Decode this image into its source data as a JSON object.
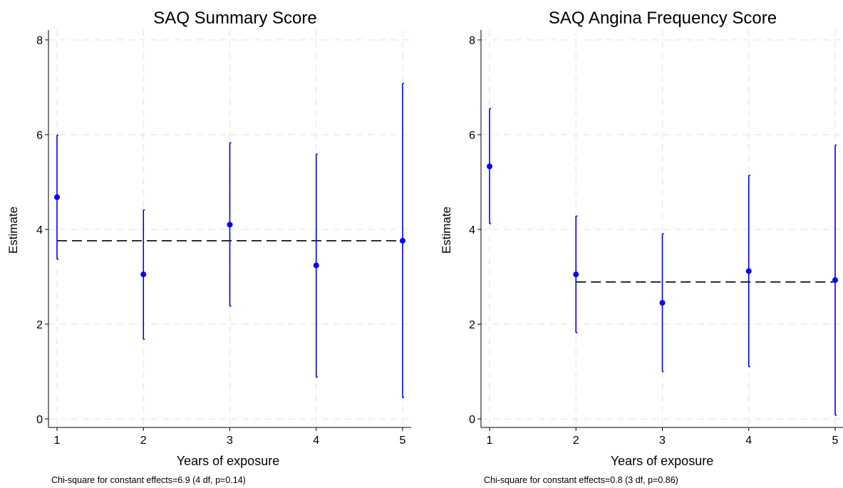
{
  "colors": {
    "marker": "#0000ff",
    "errorbar": "#0000ff",
    "reference_line": "#000000",
    "grid": "#e6e6e6"
  },
  "chart_data": [
    {
      "type": "scatter",
      "title": "SAQ Summary Score",
      "xlabel": "Years of exposure",
      "ylabel": "Estimate",
      "note": "Chi-square for constant effects=6.9 (4 df, p=0.14)",
      "x": [
        1,
        2,
        3,
        4,
        5
      ],
      "xticks": [
        "1",
        "2",
        "3",
        "4",
        "5"
      ],
      "yticks": [
        "0",
        "2",
        "4",
        "6",
        "8"
      ],
      "xlim": [
        1,
        5
      ],
      "ylim": [
        0,
        8
      ],
      "grid": true,
      "series": [
        {
          "values": [
            4.68,
            3.05,
            4.1,
            3.24,
            3.76
          ],
          "ci_lower": [
            3.37,
            1.68,
            2.38,
            0.88,
            0.45
          ],
          "ci_upper": [
            5.99,
            4.41,
            5.83,
            5.59,
            7.08
          ]
        }
      ],
      "reference_line": {
        "y": 3.76,
        "x_start": 1,
        "x_end": 5,
        "style": "dashed"
      }
    },
    {
      "type": "scatter",
      "title": "SAQ Angina Frequency Score",
      "xlabel": "Years of exposure",
      "ylabel": "Estimate",
      "note": "Chi-square for constant effects=0.8 (3 df, p=0.86)",
      "x": [
        1,
        2,
        3,
        4,
        5
      ],
      "xticks": [
        "1",
        "2",
        "3",
        "4",
        "5"
      ],
      "yticks": [
        "0",
        "2",
        "4",
        "6",
        "8"
      ],
      "xlim": [
        1,
        5
      ],
      "ylim": [
        0,
        8
      ],
      "grid": true,
      "series": [
        {
          "values": [
            5.33,
            3.05,
            2.45,
            3.12,
            2.93
          ],
          "ci_lower": [
            4.12,
            1.82,
            1.0,
            1.1,
            0.08
          ],
          "ci_upper": [
            6.55,
            4.28,
            3.91,
            5.14,
            5.78
          ]
        }
      ],
      "reference_line": {
        "y": 2.89,
        "x_start": 2,
        "x_end": 5,
        "style": "dashed"
      }
    }
  ]
}
